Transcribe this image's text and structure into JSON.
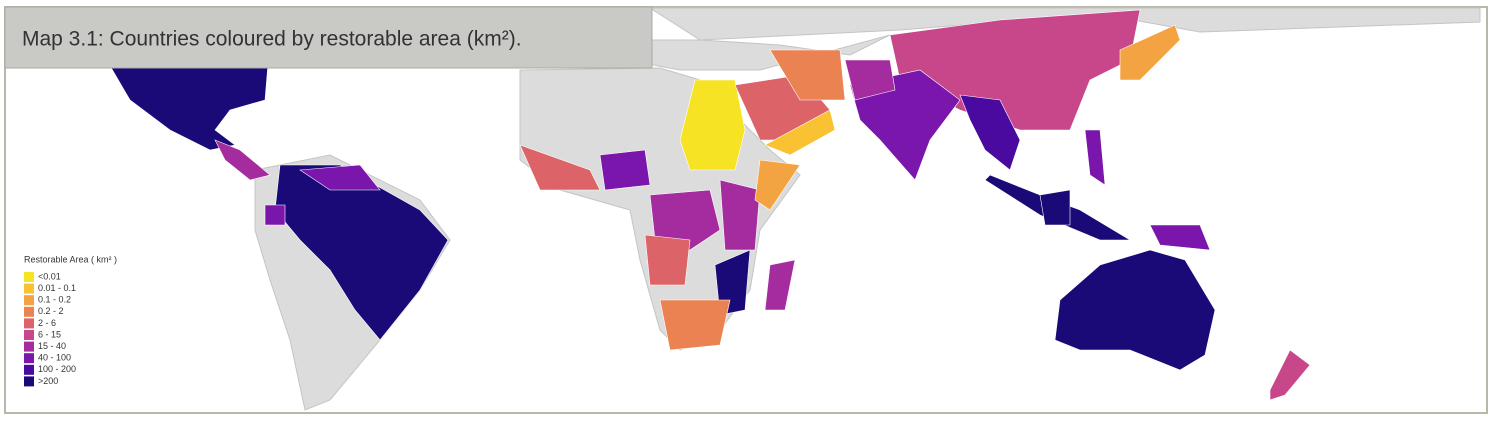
{
  "title": "Map 3.1: Countries coloured by restorable area (km²).",
  "legend": {
    "title": "Restorable Area ( km² )",
    "items": [
      {
        "label": "<0.01",
        "color": "#f6e324"
      },
      {
        "label": "0.01 - 0.1",
        "color": "#f8c232"
      },
      {
        "label": "0.1 - 0.2",
        "color": "#f4a342"
      },
      {
        "label": "0.2 - 2",
        "color": "#ea8252"
      },
      {
        "label": "2 - 6",
        "color": "#dc6468"
      },
      {
        "label": "6 - 15",
        "color": "#c8478a"
      },
      {
        "label": "15 - 40",
        "color": "#a52c9e"
      },
      {
        "label": "40 - 100",
        "color": "#7a16ab"
      },
      {
        "label": "100 - 200",
        "color": "#4a0aa0"
      },
      {
        "label": ">200",
        "color": "#1a0a78"
      }
    ]
  }
}
